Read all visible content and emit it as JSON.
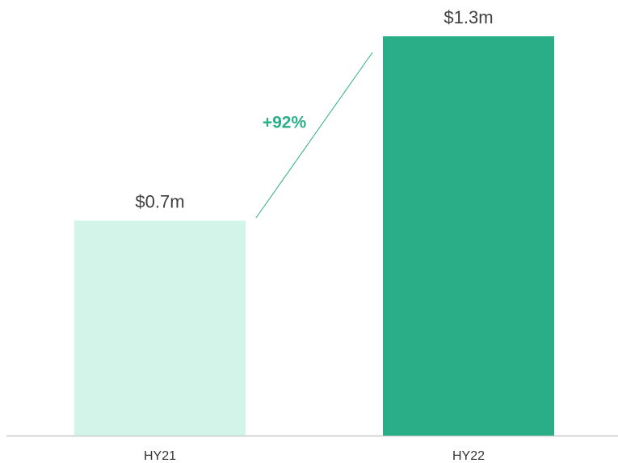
{
  "chart_data": {
    "type": "bar",
    "categories": [
      "HY21",
      "HY22"
    ],
    "values": [
      0.7,
      1.3
    ],
    "value_labels": [
      "$0.7m",
      "$1.3m"
    ],
    "colors": [
      "#d2f4e9",
      "#2aae87"
    ],
    "annotation": "+92%",
    "annotation_color": "#2aae87"
  }
}
